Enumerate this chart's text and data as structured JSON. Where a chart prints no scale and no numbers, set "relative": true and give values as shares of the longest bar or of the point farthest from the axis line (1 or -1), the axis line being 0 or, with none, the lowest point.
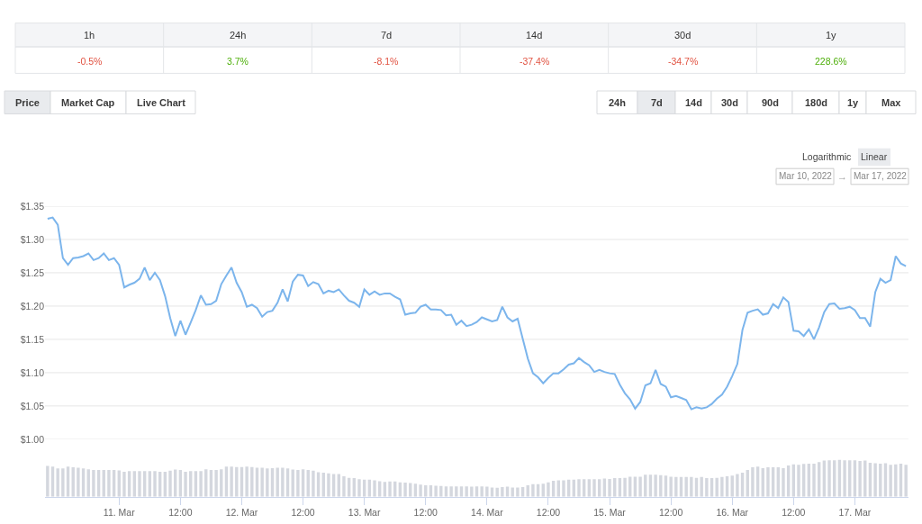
{
  "chart_data": [
    {
      "type": "other",
      "annotations": [
        "1h",
        "24h",
        "7d",
        "14d",
        "30d",
        "1y"
      ],
      "value_labels": [
        "-0.5%",
        "3.7%",
        "-8.1%",
        "-37.4%",
        "-34.7%",
        "228.6%"
      ],
      "colors": [
        "#e15241",
        "#4eaf0a",
        "#e15241",
        "#e15241",
        "#e15241",
        "#4eaf0a"
      ]
    },
    {
      "type": "line",
      "color": "#7cb5ec",
      "grid": "y",
      "tick_labels": "y",
      "xlim": [
        "2022-03-10T09:30",
        "2022-03-17T10:30"
      ],
      "ylim": [
        1.0,
        1.35
      ],
      "yticks": [
        {
          "value": 1.0,
          "label": "$1.00"
        },
        {
          "value": 1.05,
          "label": "$1.05"
        },
        {
          "value": 1.1,
          "label": "$1.10"
        },
        {
          "value": 1.15,
          "label": "$1.15"
        },
        {
          "value": 1.2,
          "label": "$1.20"
        },
        {
          "value": 1.25,
          "label": "$1.25"
        },
        {
          "value": 1.3,
          "label": "$1.30"
        },
        {
          "value": 1.35,
          "label": "$1.35"
        }
      ],
      "annotations": [
        "Price",
        "Market Cap",
        "Live Chart",
        "24h",
        "7d",
        "14d",
        "30d",
        "90d",
        "180d",
        "1y",
        "Max",
        "Logarithmic",
        "Linear",
        "Mar 10, 2022",
        "→",
        "Mar 17, 2022"
      ],
      "x": [
        "2022-03-10T10:00",
        "2022-03-10T11:00",
        "2022-03-10T12:00",
        "2022-03-10T13:00",
        "2022-03-10T14:00",
        "2022-03-10T15:00",
        "2022-03-10T16:00",
        "2022-03-10T17:00",
        "2022-03-10T18:00",
        "2022-03-10T19:00",
        "2022-03-10T20:00",
        "2022-03-10T21:00",
        "2022-03-10T22:00",
        "2022-03-10T23:00",
        "2022-03-11T00:00",
        "2022-03-11T01:00",
        "2022-03-11T02:00",
        "2022-03-11T03:00",
        "2022-03-11T04:00",
        "2022-03-11T05:00",
        "2022-03-11T06:00",
        "2022-03-11T07:00",
        "2022-03-11T08:00",
        "2022-03-11T09:00",
        "2022-03-11T10:00",
        "2022-03-11T11:00",
        "2022-03-11T12:00",
        "2022-03-11T13:00",
        "2022-03-11T14:00",
        "2022-03-11T15:00",
        "2022-03-11T16:00",
        "2022-03-11T17:00",
        "2022-03-11T18:00",
        "2022-03-11T19:00",
        "2022-03-11T20:00",
        "2022-03-11T21:00",
        "2022-03-11T22:00",
        "2022-03-11T23:00",
        "2022-03-12T00:00",
        "2022-03-12T01:00",
        "2022-03-12T02:00",
        "2022-03-12T03:00",
        "2022-03-12T04:00",
        "2022-03-12T05:00",
        "2022-03-12T06:00",
        "2022-03-12T07:00",
        "2022-03-12T08:00",
        "2022-03-12T09:00",
        "2022-03-12T10:00",
        "2022-03-12T11:00",
        "2022-03-12T12:00",
        "2022-03-12T13:00",
        "2022-03-12T14:00",
        "2022-03-12T15:00",
        "2022-03-12T16:00",
        "2022-03-12T17:00",
        "2022-03-12T18:00",
        "2022-03-12T19:00",
        "2022-03-12T20:00",
        "2022-03-12T21:00",
        "2022-03-12T22:00",
        "2022-03-12T23:00",
        "2022-03-13T00:00",
        "2022-03-13T01:00",
        "2022-03-13T02:00",
        "2022-03-13T03:00",
        "2022-03-13T04:00",
        "2022-03-13T05:00",
        "2022-03-13T06:00",
        "2022-03-13T07:00",
        "2022-03-13T08:00",
        "2022-03-13T09:00",
        "2022-03-13T10:00",
        "2022-03-13T11:00",
        "2022-03-13T12:00",
        "2022-03-13T13:00",
        "2022-03-13T14:00",
        "2022-03-13T15:00",
        "2022-03-13T16:00",
        "2022-03-13T17:00",
        "2022-03-13T18:00",
        "2022-03-13T19:00",
        "2022-03-13T20:00",
        "2022-03-13T21:00",
        "2022-03-13T22:00",
        "2022-03-13T23:00",
        "2022-03-14T00:00",
        "2022-03-14T01:00",
        "2022-03-14T02:00",
        "2022-03-14T03:00",
        "2022-03-14T04:00",
        "2022-03-14T05:00",
        "2022-03-14T06:00",
        "2022-03-14T07:00",
        "2022-03-14T08:00",
        "2022-03-14T09:00",
        "2022-03-14T10:00",
        "2022-03-14T11:00",
        "2022-03-14T12:00",
        "2022-03-14T13:00",
        "2022-03-14T14:00",
        "2022-03-14T15:00",
        "2022-03-14T16:00",
        "2022-03-14T17:00",
        "2022-03-14T18:00",
        "2022-03-14T19:00",
        "2022-03-14T20:00",
        "2022-03-14T21:00",
        "2022-03-14T22:00",
        "2022-03-14T23:00",
        "2022-03-15T00:00",
        "2022-03-15T01:00",
        "2022-03-15T02:00",
        "2022-03-15T03:00",
        "2022-03-15T04:00",
        "2022-03-15T05:00",
        "2022-03-15T06:00",
        "2022-03-15T07:00",
        "2022-03-15T08:00",
        "2022-03-15T09:00",
        "2022-03-15T10:00",
        "2022-03-15T11:00",
        "2022-03-15T12:00",
        "2022-03-15T13:00",
        "2022-03-15T14:00",
        "2022-03-15T15:00",
        "2022-03-15T16:00",
        "2022-03-15T17:00",
        "2022-03-15T18:00",
        "2022-03-15T19:00",
        "2022-03-15T20:00",
        "2022-03-15T21:00",
        "2022-03-15T22:00",
        "2022-03-15T23:00",
        "2022-03-16T00:00",
        "2022-03-16T01:00",
        "2022-03-16T02:00",
        "2022-03-16T03:00",
        "2022-03-16T04:00",
        "2022-03-16T05:00",
        "2022-03-16T06:00",
        "2022-03-16T07:00",
        "2022-03-16T08:00",
        "2022-03-16T09:00",
        "2022-03-16T10:00",
        "2022-03-16T11:00",
        "2022-03-16T12:00",
        "2022-03-16T13:00",
        "2022-03-16T14:00",
        "2022-03-16T15:00",
        "2022-03-16T16:00",
        "2022-03-16T17:00",
        "2022-03-16T18:00",
        "2022-03-16T19:00",
        "2022-03-16T20:00",
        "2022-03-16T21:00",
        "2022-03-16T22:00",
        "2022-03-16T23:00",
        "2022-03-17T00:00",
        "2022-03-17T01:00",
        "2022-03-17T02:00",
        "2022-03-17T03:00",
        "2022-03-17T04:00",
        "2022-03-17T05:00",
        "2022-03-17T06:00",
        "2022-03-17T07:00",
        "2022-03-17T08:00",
        "2022-03-17T09:00",
        "2022-03-17T10:00"
      ],
      "values": [
        1.331,
        1.333,
        1.322,
        1.272,
        1.262,
        1.272,
        1.273,
        1.275,
        1.279,
        1.269,
        1.272,
        1.279,
        1.269,
        1.272,
        1.262,
        1.228,
        1.232,
        1.235,
        1.241,
        1.258,
        1.239,
        1.25,
        1.239,
        1.215,
        1.182,
        1.155,
        1.178,
        1.157,
        1.175,
        1.194,
        1.216,
        1.202,
        1.203,
        1.208,
        1.233,
        1.246,
        1.258,
        1.235,
        1.221,
        1.199,
        1.202,
        1.197,
        1.184,
        1.191,
        1.193,
        1.205,
        1.225,
        1.207,
        1.237,
        1.247,
        1.246,
        1.23,
        1.236,
        1.233,
        1.219,
        1.223,
        1.221,
        1.225,
        1.216,
        1.208,
        1.205,
        1.199,
        1.225,
        1.217,
        1.222,
        1.217,
        1.219,
        1.219,
        1.214,
        1.21,
        1.187,
        1.189,
        1.19,
        1.199,
        1.202,
        1.195,
        1.195,
        1.194,
        1.186,
        1.187,
        1.172,
        1.178,
        1.17,
        1.172,
        1.176,
        1.183,
        1.18,
        1.177,
        1.179,
        1.199,
        1.183,
        1.177,
        1.181,
        1.151,
        1.121,
        1.099,
        1.093,
        1.084,
        1.092,
        1.099,
        1.099,
        1.105,
        1.112,
        1.114,
        1.122,
        1.116,
        1.111,
        1.101,
        1.104,
        1.101,
        1.099,
        1.098,
        1.082,
        1.069,
        1.06,
        1.046,
        1.056,
        1.081,
        1.084,
        1.104,
        1.083,
        1.079,
        1.063,
        1.065,
        1.062,
        1.059,
        1.045,
        1.048,
        1.046,
        1.048,
        1.053,
        1.061,
        1.067,
        1.079,
        1.095,
        1.113,
        1.164,
        1.19,
        1.193,
        1.195,
        1.187,
        1.189,
        1.203,
        1.197,
        1.213,
        1.206,
        1.163,
        1.162,
        1.155,
        1.165,
        1.15,
        1.168,
        1.191,
        1.203,
        1.204,
        1.196,
        1.197,
        1.199,
        1.194,
        1.182,
        1.182,
        1.169,
        1.221,
        1.241,
        1.235,
        1.239,
        1.275,
        1.264,
        1.26
      ]
    },
    {
      "type": "bar",
      "relative": true,
      "color": "#d4d7de",
      "tick_labels": "x",
      "xlim": [
        "2022-03-10T09:30",
        "2022-03-17T10:30"
      ],
      "xticks": [
        {
          "value": "2022-03-11",
          "label": "11. Mar"
        },
        {
          "value": "2022-03-11T12:00",
          "label": "12:00"
        },
        {
          "value": "2022-03-12",
          "label": "12. Mar"
        },
        {
          "value": "2022-03-12T12:00",
          "label": "12:00"
        },
        {
          "value": "2022-03-13",
          "label": "13. Mar"
        },
        {
          "value": "2022-03-13T12:00",
          "label": "12:00"
        },
        {
          "value": "2022-03-14",
          "label": "14. Mar"
        },
        {
          "value": "2022-03-14T12:00",
          "label": "12:00"
        },
        {
          "value": "2022-03-15",
          "label": "15. Mar"
        },
        {
          "value": "2022-03-15T12:00",
          "label": "12:00"
        },
        {
          "value": "2022-03-16",
          "label": "16. Mar"
        },
        {
          "value": "2022-03-16T12:00",
          "label": "12:00"
        },
        {
          "value": "2022-03-17",
          "label": "17. Mar"
        }
      ],
      "x": [
        "2022-03-10T10:00",
        "2022-03-10T11:00",
        "2022-03-10T12:00",
        "2022-03-10T13:00",
        "2022-03-10T14:00",
        "2022-03-10T15:00",
        "2022-03-10T16:00",
        "2022-03-10T17:00",
        "2022-03-10T18:00",
        "2022-03-10T19:00",
        "2022-03-10T20:00",
        "2022-03-10T21:00",
        "2022-03-10T22:00",
        "2022-03-10T23:00",
        "2022-03-11T00:00",
        "2022-03-11T01:00",
        "2022-03-11T02:00",
        "2022-03-11T03:00",
        "2022-03-11T04:00",
        "2022-03-11T05:00",
        "2022-03-11T06:00",
        "2022-03-11T07:00",
        "2022-03-11T08:00",
        "2022-03-11T09:00",
        "2022-03-11T10:00",
        "2022-03-11T11:00",
        "2022-03-11T12:00",
        "2022-03-11T13:00",
        "2022-03-11T14:00",
        "2022-03-11T15:00",
        "2022-03-11T16:00",
        "2022-03-11T17:00",
        "2022-03-11T18:00",
        "2022-03-11T19:00",
        "2022-03-11T20:00",
        "2022-03-11T21:00",
        "2022-03-11T22:00",
        "2022-03-11T23:00",
        "2022-03-12T00:00",
        "2022-03-12T01:00",
        "2022-03-12T02:00",
        "2022-03-12T03:00",
        "2022-03-12T04:00",
        "2022-03-12T05:00",
        "2022-03-12T06:00",
        "2022-03-12T07:00",
        "2022-03-12T08:00",
        "2022-03-12T09:00",
        "2022-03-12T10:00",
        "2022-03-12T11:00",
        "2022-03-12T12:00",
        "2022-03-12T13:00",
        "2022-03-12T14:00",
        "2022-03-12T15:00",
        "2022-03-12T16:00",
        "2022-03-12T17:00",
        "2022-03-12T18:00",
        "2022-03-12T19:00",
        "2022-03-12T20:00",
        "2022-03-12T21:00",
        "2022-03-12T22:00",
        "2022-03-12T23:00",
        "2022-03-13T00:00",
        "2022-03-13T01:00",
        "2022-03-13T02:00",
        "2022-03-13T03:00",
        "2022-03-13T04:00",
        "2022-03-13T05:00",
        "2022-03-13T06:00",
        "2022-03-13T07:00",
        "2022-03-13T08:00",
        "2022-03-13T09:00",
        "2022-03-13T10:00",
        "2022-03-13T11:00",
        "2022-03-13T12:00",
        "2022-03-13T13:00",
        "2022-03-13T14:00",
        "2022-03-13T15:00",
        "2022-03-13T16:00",
        "2022-03-13T17:00",
        "2022-03-13T18:00",
        "2022-03-13T19:00",
        "2022-03-13T20:00",
        "2022-03-13T21:00",
        "2022-03-13T22:00",
        "2022-03-13T23:00",
        "2022-03-14T00:00",
        "2022-03-14T01:00",
        "2022-03-14T02:00",
        "2022-03-14T03:00",
        "2022-03-14T04:00",
        "2022-03-14T05:00",
        "2022-03-14T06:00",
        "2022-03-14T07:00",
        "2022-03-14T08:00",
        "2022-03-14T09:00",
        "2022-03-14T10:00",
        "2022-03-14T11:00",
        "2022-03-14T12:00",
        "2022-03-14T13:00",
        "2022-03-14T14:00",
        "2022-03-14T15:00",
        "2022-03-14T16:00",
        "2022-03-14T17:00",
        "2022-03-14T18:00",
        "2022-03-14T19:00",
        "2022-03-14T20:00",
        "2022-03-14T21:00",
        "2022-03-14T22:00",
        "2022-03-14T23:00",
        "2022-03-15T00:00",
        "2022-03-15T01:00",
        "2022-03-15T02:00",
        "2022-03-15T03:00",
        "2022-03-15T04:00",
        "2022-03-15T05:00",
        "2022-03-15T06:00",
        "2022-03-15T07:00",
        "2022-03-15T08:00",
        "2022-03-15T09:00",
        "2022-03-15T10:00",
        "2022-03-15T11:00",
        "2022-03-15T12:00",
        "2022-03-15T13:00",
        "2022-03-15T14:00",
        "2022-03-15T15:00",
        "2022-03-15T16:00",
        "2022-03-15T17:00",
        "2022-03-15T18:00",
        "2022-03-15T19:00",
        "2022-03-15T20:00",
        "2022-03-15T21:00",
        "2022-03-15T22:00",
        "2022-03-15T23:00",
        "2022-03-16T00:00",
        "2022-03-16T01:00",
        "2022-03-16T02:00",
        "2022-03-16T03:00",
        "2022-03-16T04:00",
        "2022-03-16T05:00",
        "2022-03-16T06:00",
        "2022-03-16T07:00",
        "2022-03-16T08:00",
        "2022-03-16T09:00",
        "2022-03-16T10:00",
        "2022-03-16T11:00",
        "2022-03-16T12:00",
        "2022-03-16T13:00",
        "2022-03-16T14:00",
        "2022-03-16T15:00",
        "2022-03-16T16:00",
        "2022-03-16T17:00",
        "2022-03-16T18:00",
        "2022-03-16T19:00",
        "2022-03-16T20:00",
        "2022-03-16T21:00",
        "2022-03-16T22:00",
        "2022-03-16T23:00",
        "2022-03-17T00:00",
        "2022-03-17T01:00",
        "2022-03-17T02:00",
        "2022-03-17T03:00",
        "2022-03-17T04:00",
        "2022-03-17T05:00",
        "2022-03-17T06:00",
        "2022-03-17T07:00",
        "2022-03-17T08:00",
        "2022-03-17T09:00",
        "2022-03-17T10:00"
      ],
      "values": [
        0.83,
        0.81,
        0.76,
        0.76,
        0.81,
        0.79,
        0.78,
        0.76,
        0.74,
        0.72,
        0.72,
        0.72,
        0.72,
        0.72,
        0.71,
        0.67,
        0.69,
        0.69,
        0.69,
        0.69,
        0.69,
        0.69,
        0.67,
        0.67,
        0.7,
        0.73,
        0.72,
        0.67,
        0.69,
        0.69,
        0.69,
        0.74,
        0.72,
        0.72,
        0.74,
        0.81,
        0.81,
        0.8,
        0.8,
        0.81,
        0.8,
        0.78,
        0.78,
        0.76,
        0.77,
        0.78,
        0.78,
        0.76,
        0.73,
        0.72,
        0.74,
        0.72,
        0.7,
        0.66,
        0.65,
        0.63,
        0.61,
        0.61,
        0.55,
        0.51,
        0.5,
        0.47,
        0.46,
        0.46,
        0.44,
        0.42,
        0.4,
        0.41,
        0.41,
        0.39,
        0.38,
        0.37,
        0.35,
        0.33,
        0.31,
        0.31,
        0.3,
        0.29,
        0.28,
        0.28,
        0.28,
        0.28,
        0.28,
        0.27,
        0.28,
        0.28,
        0.27,
        0.25,
        0.24,
        0.26,
        0.27,
        0.25,
        0.25,
        0.26,
        0.31,
        0.34,
        0.34,
        0.35,
        0.39,
        0.43,
        0.44,
        0.44,
        0.46,
        0.46,
        0.47,
        0.47,
        0.47,
        0.47,
        0.47,
        0.49,
        0.48,
        0.5,
        0.5,
        0.51,
        0.54,
        0.54,
        0.54,
        0.59,
        0.59,
        0.59,
        0.58,
        0.57,
        0.54,
        0.53,
        0.53,
        0.53,
        0.53,
        0.51,
        0.53,
        0.5,
        0.5,
        0.51,
        0.53,
        0.55,
        0.57,
        0.61,
        0.65,
        0.72,
        0.79,
        0.81,
        0.77,
        0.79,
        0.79,
        0.79,
        0.77,
        0.84,
        0.87,
        0.86,
        0.88,
        0.89,
        0.89,
        0.93,
        0.97,
        0.98,
        0.98,
        1,
        0.98,
        0.98,
        0.98,
        0.96,
        0.97,
        0.91,
        0.9,
        0.89,
        0.9,
        0.86,
        0.87,
        0.89,
        0.86
      ]
    }
  ]
}
